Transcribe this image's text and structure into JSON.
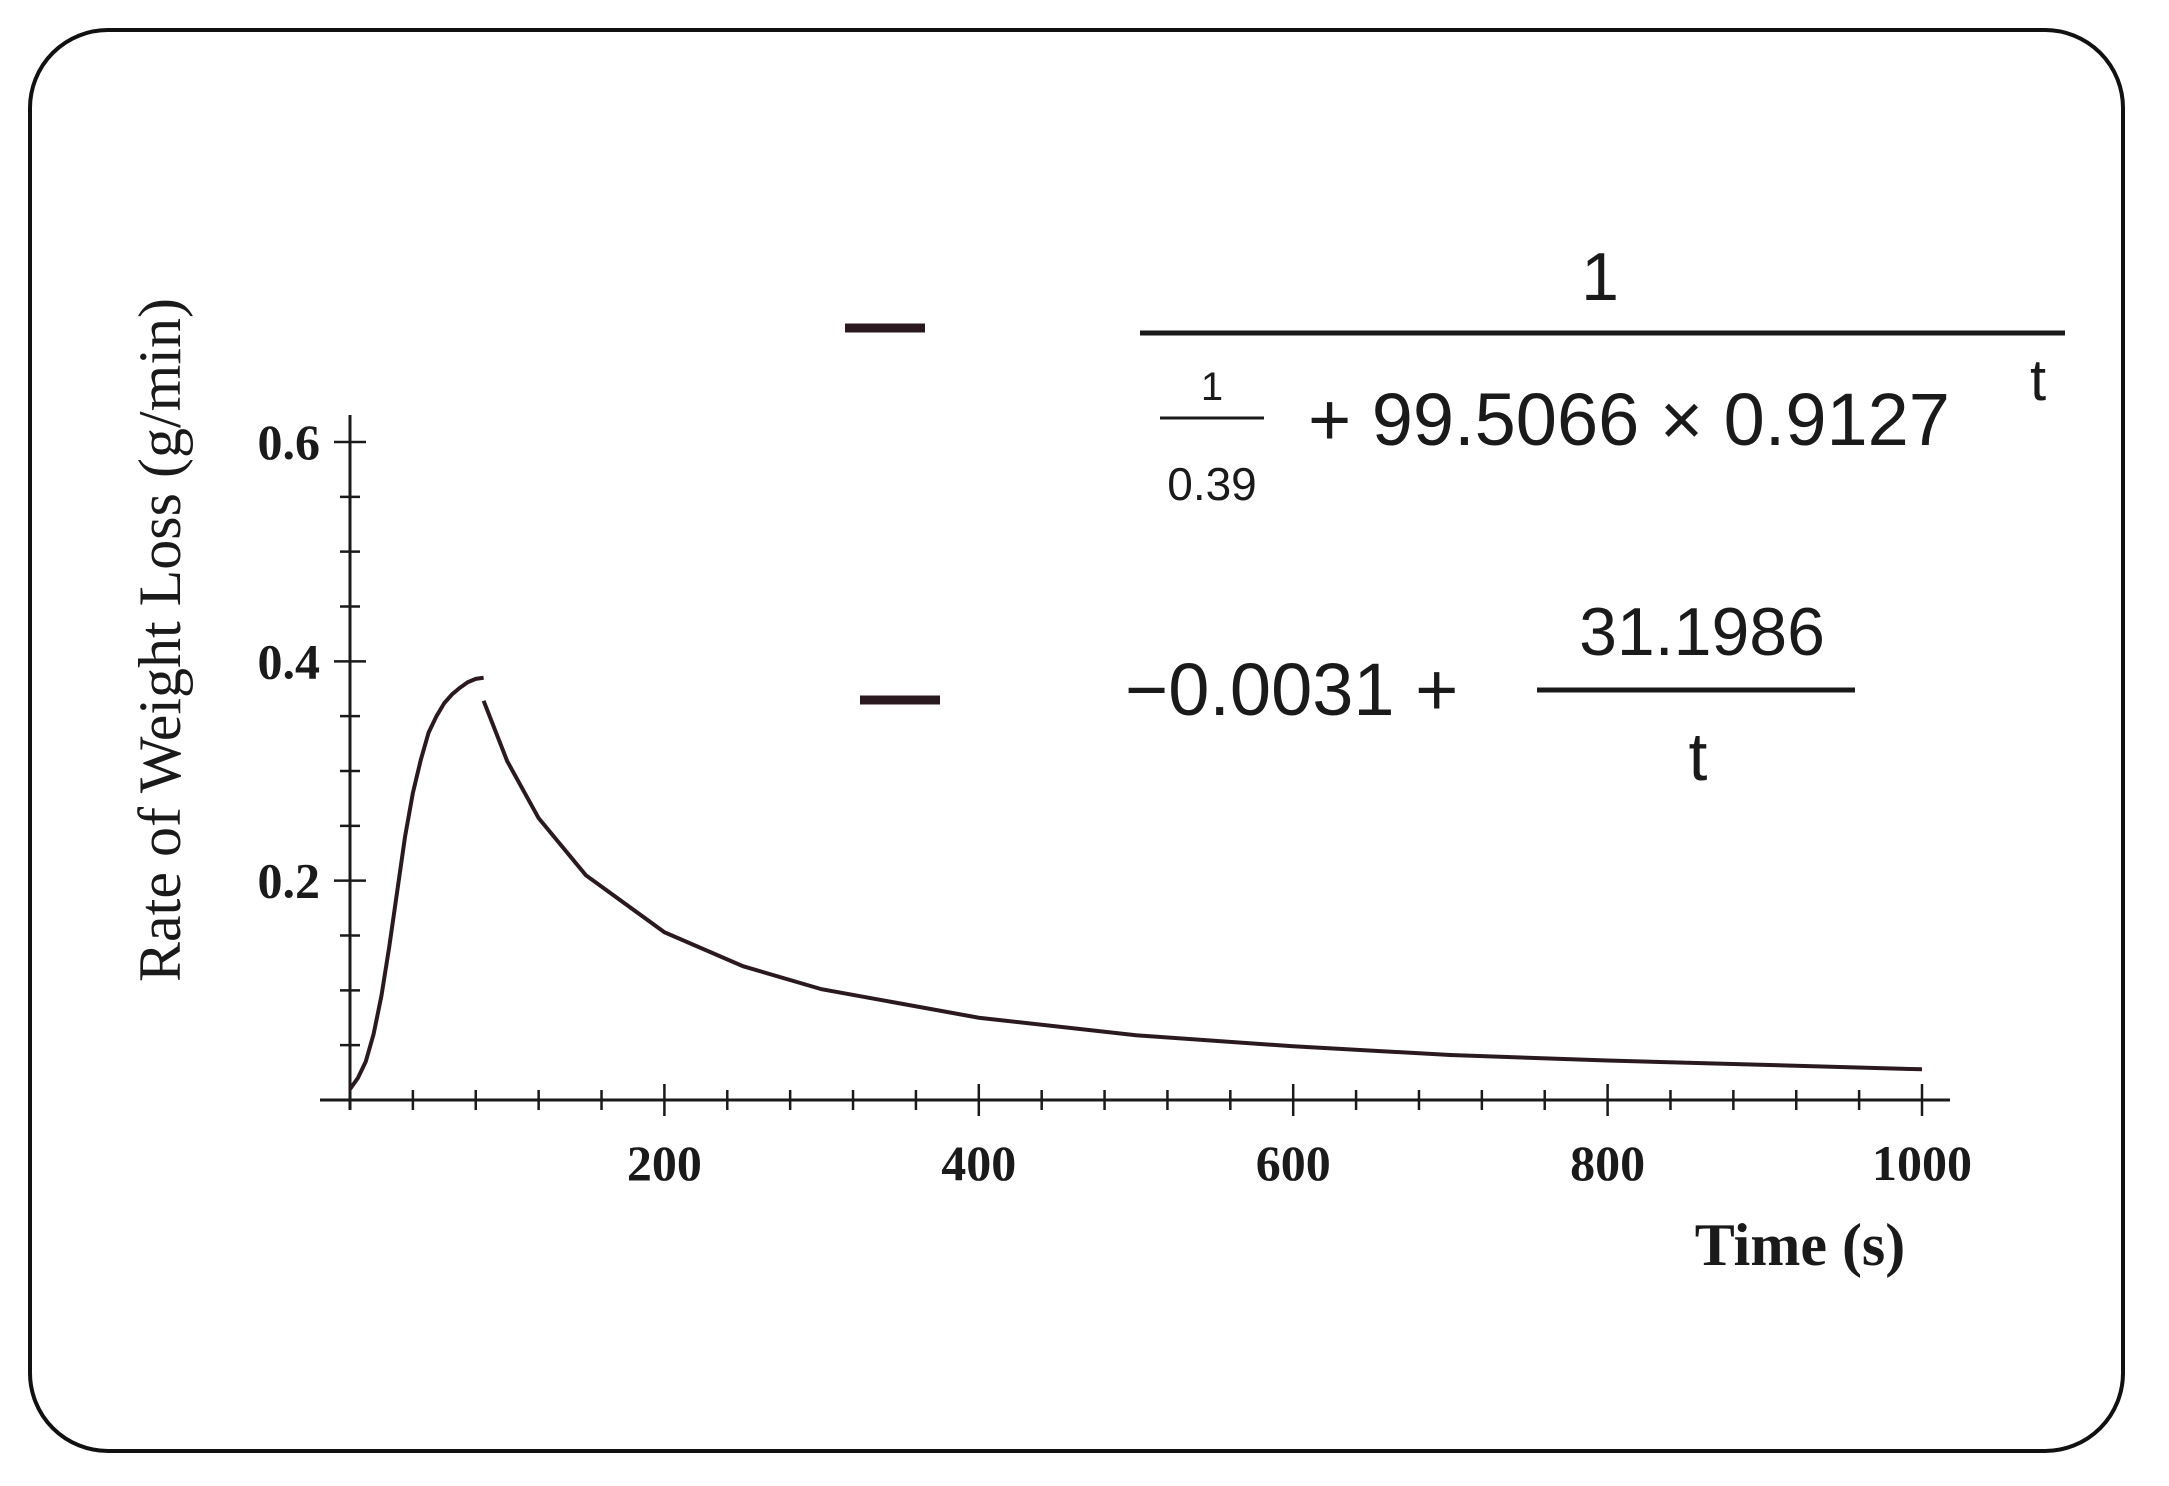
{
  "chart_data": {
    "type": "line",
    "xlabel": "Time (s)",
    "ylabel": "Rate of Weight Loss (g/min)",
    "xlim": [
      0,
      1000
    ],
    "ylim": [
      0,
      0.6
    ],
    "x_ticks": [
      200,
      400,
      600,
      800,
      1000
    ],
    "y_ticks": [
      0.2,
      0.4,
      0.6
    ],
    "legend_placement": "top-right",
    "series": [
      {
        "color": "#2a1a20",
        "legend": {
          "numerator": "1",
          "denom_frac_num": "1",
          "denom_frac_den": "0.39",
          "denom_rest": "+ 99.5066 × 0.9127",
          "exponent": "t"
        },
        "x": [
          0,
          5,
          10,
          15,
          20,
          25,
          30,
          35,
          40,
          45,
          50,
          55,
          60,
          65,
          70,
          75,
          80,
          85
        ],
        "y": [
          0.01,
          0.02,
          0.035,
          0.06,
          0.095,
          0.14,
          0.19,
          0.24,
          0.28,
          0.31,
          0.335,
          0.35,
          0.362,
          0.37,
          0.376,
          0.381,
          0.384,
          0.385
        ]
      },
      {
        "color": "#2a1a20",
        "legend": {
          "constant": "−0.0031 +",
          "frac_num": "31.1986",
          "frac_den": "t"
        },
        "x": [
          85,
          100,
          120,
          150,
          200,
          250,
          300,
          400,
          500,
          600,
          700,
          800,
          900,
          1000
        ],
        "y": [
          0.364,
          0.309,
          0.257,
          0.205,
          0.153,
          0.122,
          0.101,
          0.075,
          0.059,
          0.049,
          0.041,
          0.036,
          0.032,
          0.028
        ]
      }
    ]
  }
}
